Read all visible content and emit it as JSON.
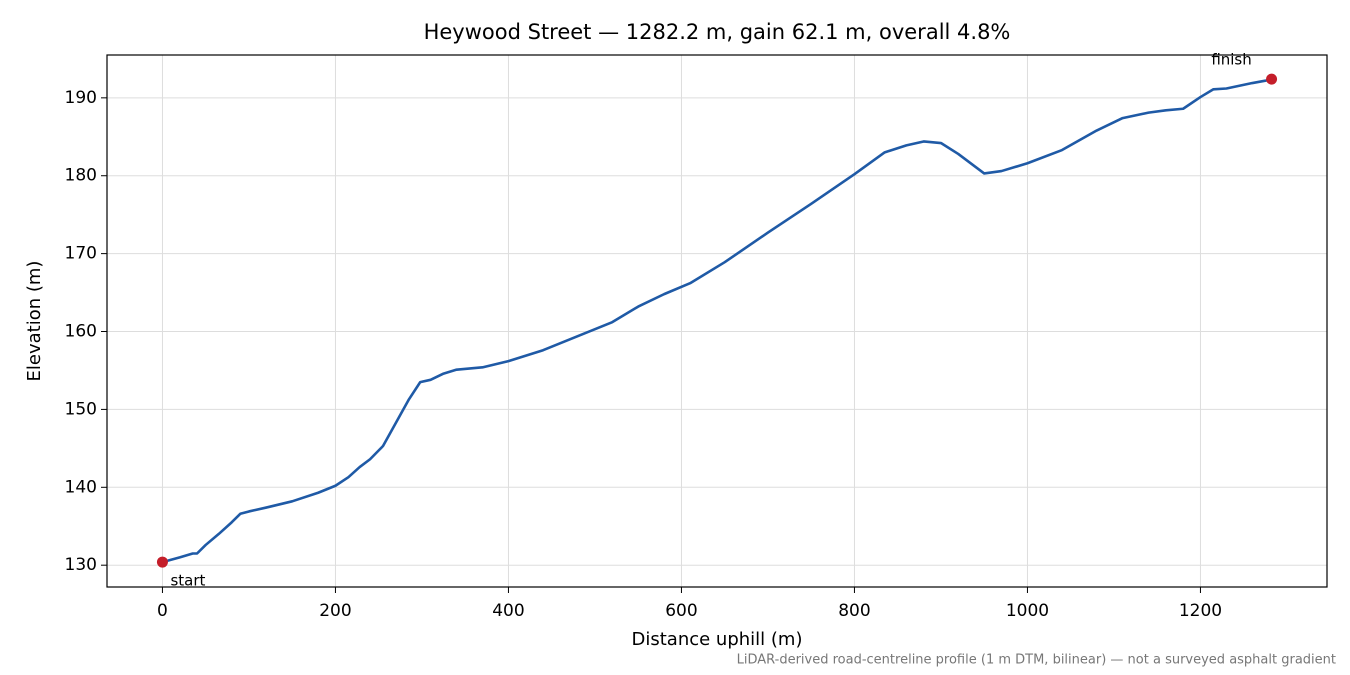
{
  "chart_data": {
    "type": "line",
    "title": "Heywood Street — 1282.2 m, gain 62.1 m, overall 4.8%",
    "xlabel": "Distance uphill (m)",
    "ylabel": "Elevation (m)",
    "footnote": "LiDAR-derived road-centreline profile (1 m DTM, bilinear) — not a surveyed asphalt gradient",
    "x": [
      0,
      20,
      35,
      40,
      50,
      65,
      80,
      90,
      100,
      120,
      150,
      180,
      200,
      215,
      228,
      240,
      255,
      270,
      285,
      298,
      310,
      325,
      340,
      370,
      400,
      440,
      480,
      520,
      550,
      580,
      610,
      650,
      700,
      750,
      800,
      835,
      860,
      880,
      900,
      920,
      950,
      970,
      1000,
      1040,
      1080,
      1110,
      1140,
      1160,
      1180,
      1200,
      1215,
      1230,
      1260,
      1275,
      1282.2
    ],
    "values": [
      130.4,
      131.0,
      131.5,
      131.5,
      132.6,
      134.0,
      135.5,
      136.6,
      136.9,
      137.4,
      138.2,
      139.3,
      140.2,
      141.3,
      142.6,
      143.6,
      145.3,
      148.3,
      151.3,
      153.5,
      153.8,
      154.6,
      155.1,
      155.4,
      156.2,
      157.6,
      159.4,
      161.2,
      163.2,
      164.8,
      166.2,
      168.9,
      172.7,
      176.4,
      180.2,
      183.0,
      183.9,
      184.4,
      184.2,
      182.8,
      180.3,
      180.6,
      181.6,
      183.3,
      185.8,
      187.4,
      188.1,
      188.4,
      188.6,
      190.1,
      191.1,
      191.2,
      191.9,
      192.2,
      192.4
    ],
    "color": "#1f5aa6",
    "markers": [
      {
        "label": "start",
        "x": 0,
        "y": 130.4
      },
      {
        "label": "finish",
        "x": 1282.2,
        "y": 192.4
      }
    ],
    "marker_color": "#c41e2a",
    "xlim": [
      -64.1,
      1346.3
    ],
    "ylim": [
      127.2,
      195.5
    ],
    "xticks": [
      0,
      200,
      400,
      600,
      800,
      1000,
      1200
    ],
    "yticks": [
      130,
      140,
      150,
      160,
      170,
      180,
      190
    ],
    "grid": true
  }
}
